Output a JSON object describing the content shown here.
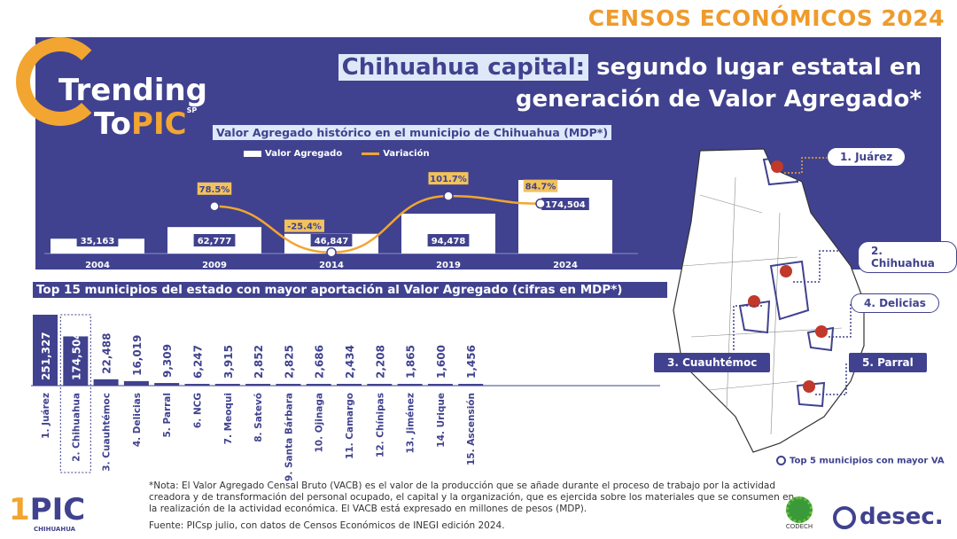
{
  "banner": "CENSOS ECONÓMICOS 2024",
  "logo": {
    "line1": "Trending",
    "line2a": "To",
    "line2b": "PIC",
    "sp": "SP"
  },
  "headline": {
    "highlight": "Chihuahua capital:",
    "rest1": " segundo lugar estatal en",
    "rest2": "generación de Valor Agregado*"
  },
  "chart_data": [
    {
      "type": "bar+line",
      "title": "Valor Agregado histórico en el municipio de Chihuahua (MDP*)",
      "categories": [
        "2004",
        "2009",
        "2014",
        "2019",
        "2024"
      ],
      "series": [
        {
          "name": "Valor Agregado",
          "values": [
            35163,
            62777,
            46847,
            94478,
            174504
          ],
          "labels": [
            "35,163",
            "62,777",
            "46,847",
            "94,478",
            "174,504"
          ]
        },
        {
          "name": "Variación",
          "values": [
            null,
            78.5,
            -25.4,
            101.7,
            84.7
          ],
          "labels": [
            "",
            "78.5%",
            "-25.4%",
            "101.7%",
            "84.7%"
          ]
        }
      ],
      "legend": "top"
    },
    {
      "type": "bar",
      "title": "Top 15 municipios del estado con mayor aportación al Valor Agregado (cifras en MDP*)",
      "categories": [
        "1. Juárez",
        "2. Chihuahua",
        "3. Cuauhtémoc",
        "4. Delicias",
        "5. Parral",
        "6. NCG",
        "7. Meoqui",
        "8. Satevó",
        "9. Santa Bárbara",
        "10. Ojinaga",
        "11. Camargo",
        "12. Chínipas",
        "13. Jiménez",
        "14. Urique",
        "15. Ascensión"
      ],
      "values": [
        251327,
        174504,
        22488,
        16019,
        9309,
        6247,
        3915,
        2852,
        2825,
        2686,
        2434,
        2208,
        1865,
        1600,
        1456
      ],
      "labels": [
        "251,327",
        "174,504",
        "22,488",
        "16,019",
        "9,309",
        "6,247",
        "3,915",
        "2,852",
        "2,825",
        "2,686",
        "2,434",
        "2,208",
        "1,865",
        "1,600",
        "1,456"
      ],
      "highlight": "2. Chihuahua"
    }
  ],
  "map": {
    "labels": [
      "1. Juárez",
      "2. Chihuahua",
      "3. Cuauhtémoc",
      "4. Delicias",
      "5. Parral"
    ],
    "legend": "Top 5 municipios con mayor VA"
  },
  "note": "*Nota: El Valor Agregado Censal Bruto (VACB) es el valor de la producción que se añade durante el proceso de trabajo por la actividad creadora y de transformación del personal ocupado, el capital y la organización, que es ejercida sobre los materiales que se consumen en la realización de la actividad económica.  El VACB está expresado en millones de pesos (MDP).",
  "source": "Fuente: PICsp julio, con datos de Censos Económicos de INEGI edición 2024.",
  "footer": {
    "pic": "PIC",
    "pic_sub": "CHIHUAHUA",
    "codech": "CODECH",
    "desec": "desec."
  },
  "colors": {
    "primary": "#40428f",
    "accent": "#f2a531",
    "highlight": "#dfe8f8"
  }
}
